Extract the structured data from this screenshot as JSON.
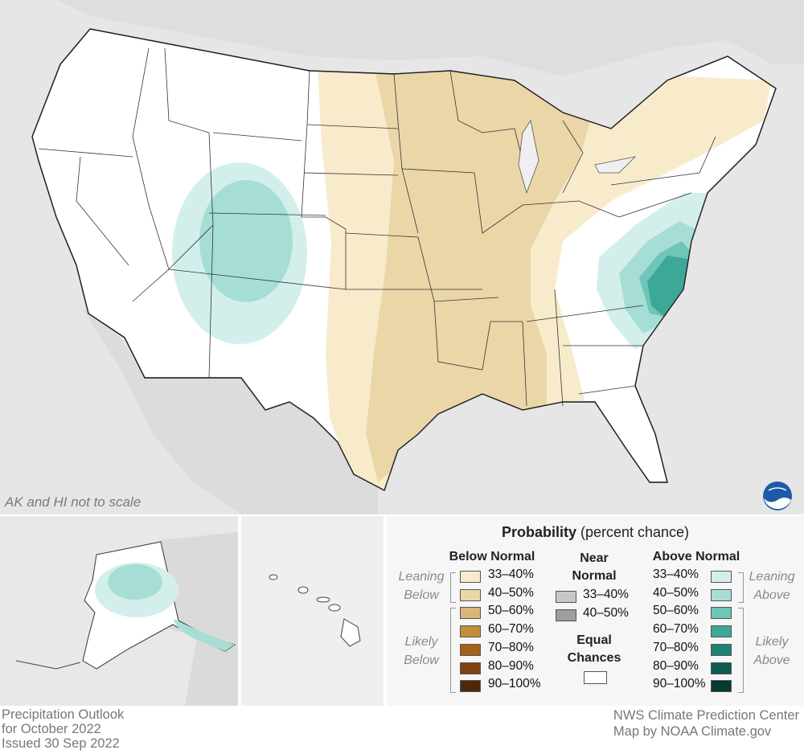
{
  "map": {
    "scale_note": "AK and HI not to scale"
  },
  "legend": {
    "title_bold": "Probability",
    "title_rest": " (percent chance)",
    "below": {
      "heading": "Below Normal",
      "leaning_label_1": "Leaning",
      "leaning_label_2": "Below",
      "likely_label_1": "Likely",
      "likely_label_2": "Below",
      "items": [
        {
          "label": "33–40%",
          "color": "#f8ebcc"
        },
        {
          "label": "40–50%",
          "color": "#ebd6a8"
        },
        {
          "label": "50–60%",
          "color": "#d8b67a"
        },
        {
          "label": "60–70%",
          "color": "#c48d3c"
        },
        {
          "label": "70–80%",
          "color": "#a4621d"
        },
        {
          "label": "80–90%",
          "color": "#7c4311"
        },
        {
          "label": "90–100%",
          "color": "#4e2808"
        }
      ]
    },
    "near": {
      "heading_1": "Near",
      "heading_2": "Normal",
      "items": [
        {
          "label": "33–40%",
          "color": "#c8c8c8"
        },
        {
          "label": "40–50%",
          "color": "#9e9e9e"
        }
      ],
      "equal_1": "Equal",
      "equal_2": "Chances",
      "equal_color": "#ffffff"
    },
    "above": {
      "heading": "Above Normal",
      "leaning_label_1": "Leaning",
      "leaning_label_2": "Above",
      "likely_label_1": "Likely",
      "likely_label_2": "Above",
      "items": [
        {
          "label": "33–40%",
          "color": "#d3efeb"
        },
        {
          "label": "40–50%",
          "color": "#a6ded6"
        },
        {
          "label": "50–60%",
          "color": "#6fc6b8"
        },
        {
          "label": "60–70%",
          "color": "#3ea898"
        },
        {
          "label": "70–80%",
          "color": "#1d8474"
        },
        {
          "label": "80–90%",
          "color": "#0e5c50"
        },
        {
          "label": "90–100%",
          "color": "#063a32"
        }
      ]
    }
  },
  "footer": {
    "line1": "Precipitation Outlook",
    "line2": "for October 2022",
    "line3": "Issued 30 Sep 2022",
    "credit1": "NWS Climate Prediction Center",
    "credit2": "Map by NOAA Climate.gov"
  }
}
